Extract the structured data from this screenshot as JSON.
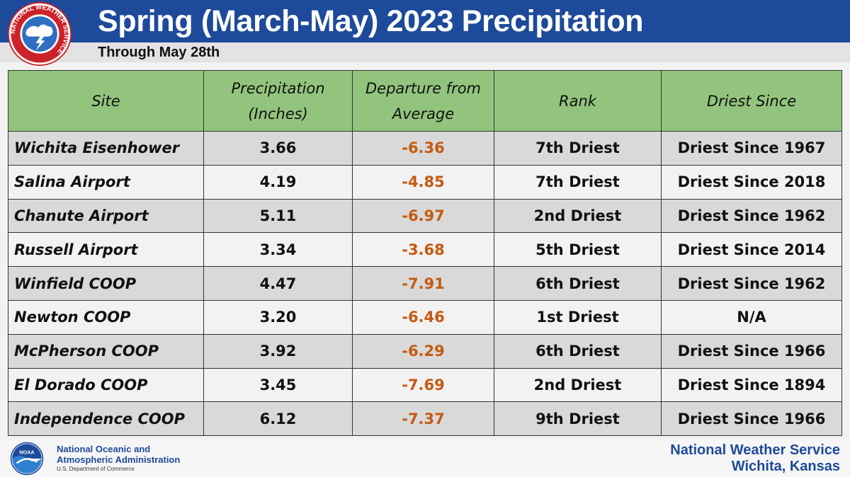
{
  "header": {
    "title": "Spring (March-May) 2023 Precipitation",
    "subtitle": "Through May 28th",
    "logo_ring_text": "NATIONAL WEATHER SERVICE"
  },
  "table": {
    "columns": [
      "Site",
      "Precipitation\n(Inches)",
      "Departure from\nAverage",
      "Rank",
      "Driest Since"
    ],
    "rows": [
      {
        "site": "Wichita Eisenhower",
        "precip": "3.66",
        "departure": "-6.36",
        "rank": "7th Driest",
        "since": "Driest Since 1967"
      },
      {
        "site": "Salina Airport",
        "precip": "4.19",
        "departure": "-4.85",
        "rank": "7th Driest",
        "since": "Driest Since 2018"
      },
      {
        "site": "Chanute Airport",
        "precip": "5.11",
        "departure": "-6.97",
        "rank": "2nd Driest",
        "since": "Driest Since 1962"
      },
      {
        "site": "Russell Airport",
        "precip": "3.34",
        "departure": "-3.68",
        "rank": "5th Driest",
        "since": "Driest Since 2014"
      },
      {
        "site": "Winfield COOP",
        "precip": "4.47",
        "departure": "-7.91",
        "rank": "6th Driest",
        "since": "Driest Since 1962"
      },
      {
        "site": "Newton COOP",
        "precip": "3.20",
        "departure": "-6.46",
        "rank": "1st Driest",
        "since": "N/A"
      },
      {
        "site": "McPherson COOP",
        "precip": "3.92",
        "departure": "-6.29",
        "rank": "6th Driest",
        "since": "Driest Since 1966"
      },
      {
        "site": "El Dorado COOP",
        "precip": "3.45",
        "departure": "-7.69",
        "rank": "2nd Driest",
        "since": "Driest Since 1894"
      },
      {
        "site": "Independence COOP",
        "precip": "6.12",
        "departure": "-7.37",
        "rank": "9th Driest",
        "since": "Driest Since 1966"
      }
    ]
  },
  "footer": {
    "noaa_logo_text": "NOAA",
    "noaa_line1": "National Oceanic and",
    "noaa_line2": "Atmospheric Administration",
    "noaa_dept": "U.S. Department of Commerce",
    "nws_line1": "National Weather Service",
    "nws_line2": "Wichita, Kansas"
  },
  "colors": {
    "title_bar": "#1d4a9a",
    "header_green": "#92c47d",
    "departure_orange": "#c55a11",
    "row_gray": "#d9d9d9",
    "row_light": "#f2f2f2"
  }
}
